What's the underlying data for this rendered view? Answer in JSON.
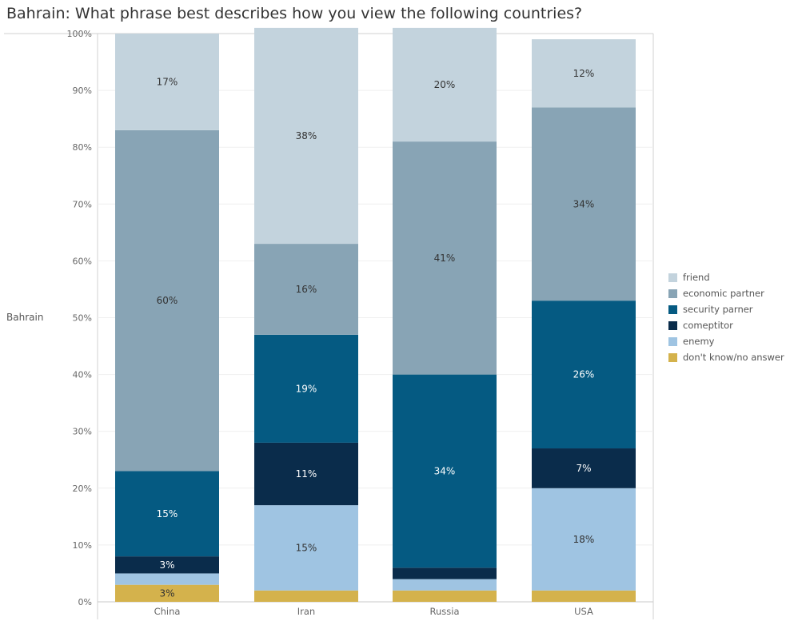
{
  "chart_data": {
    "type": "bar",
    "stacked": true,
    "title": "Bahrain: What phrase best describes how you view the following countries?",
    "row_label": "Bahrain",
    "categories": [
      "China",
      "Iran",
      "Russia",
      "USA"
    ],
    "y_ticks": [
      "0%",
      "10%",
      "20%",
      "30%",
      "40%",
      "50%",
      "60%",
      "70%",
      "80%",
      "90%",
      "100%"
    ],
    "ylim": [
      0,
      100
    ],
    "grid": true,
    "legend_position": "right",
    "series": [
      {
        "name": "don't know/no answer",
        "color": "#d4b24c",
        "values": [
          3,
          2,
          2,
          2
        ],
        "labels": [
          "3%",
          "",
          "",
          ""
        ]
      },
      {
        "name": "enemy",
        "color": "#9fc4e2",
        "values": [
          2,
          15,
          2,
          18
        ],
        "labels": [
          "",
          "15%",
          "",
          "18%"
        ]
      },
      {
        "name": "comeptitor",
        "color": "#0a2c4b",
        "values": [
          3,
          11,
          2,
          7
        ],
        "labels": [
          "3%",
          "11%",
          "",
          "7%"
        ]
      },
      {
        "name": "security parner",
        "color": "#055a82",
        "values": [
          15,
          19,
          34,
          26
        ],
        "labels": [
          "15%",
          "19%",
          "34%",
          "26%"
        ]
      },
      {
        "name": "economic partner",
        "color": "#88a4b5",
        "values": [
          60,
          16,
          41,
          34
        ],
        "labels": [
          "60%",
          "16%",
          "41%",
          "34%"
        ]
      },
      {
        "name": "friend",
        "color": "#c3d3dd",
        "values": [
          17,
          38,
          20,
          12
        ],
        "labels": [
          "17%",
          "38%",
          "20%",
          "12%"
        ]
      }
    ],
    "legend_order": [
      "friend",
      "economic partner",
      "security parner",
      "comeptitor",
      "enemy",
      "don't know/no answer"
    ]
  }
}
